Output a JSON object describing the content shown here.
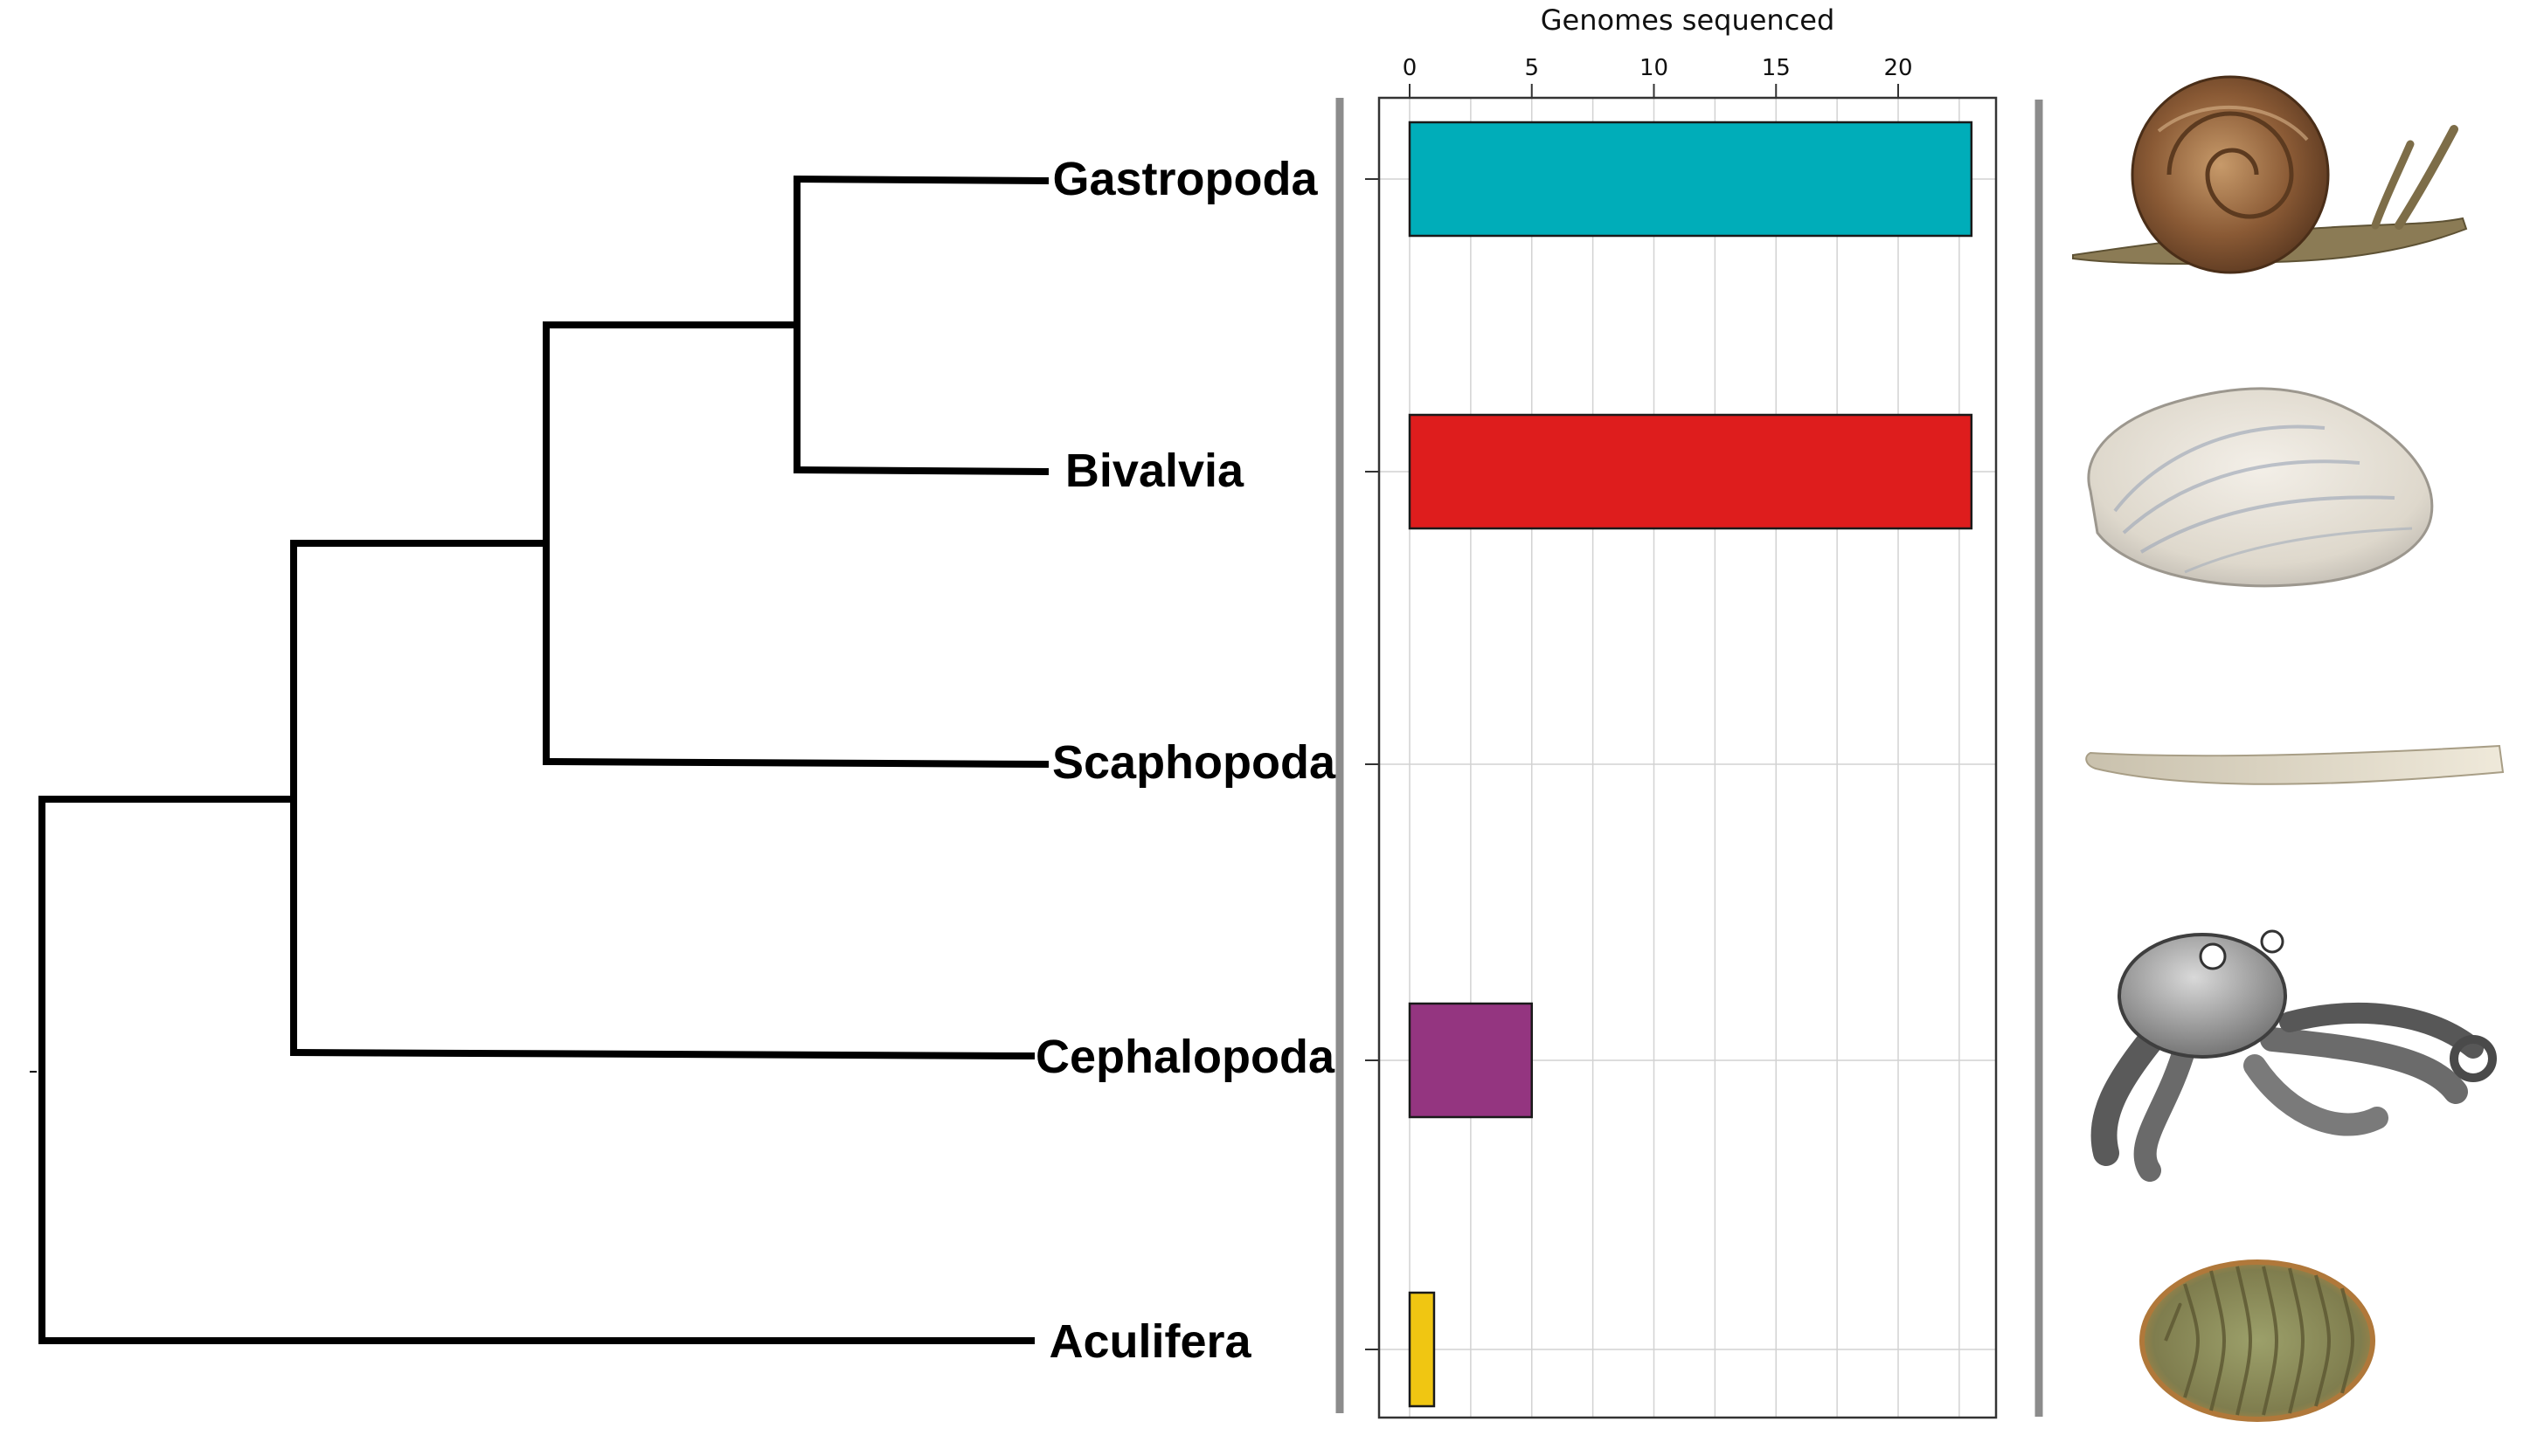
{
  "chart_data": {
    "type": "bar",
    "orientation": "horizontal",
    "xlabel": "Genomes sequenced",
    "xlim": [
      0,
      24
    ],
    "x_ticks": [
      0,
      5,
      10,
      15,
      20
    ],
    "grid": true,
    "categories": [
      "Gastropoda",
      "Bivalvia",
      "Scaphopoda",
      "Cephalopoda",
      "Aculifera"
    ],
    "values": [
      23,
      23,
      0,
      5,
      1
    ],
    "colors": [
      "#00adb9",
      "#de1d1d",
      "#ffffff",
      "#943580",
      "#f0c612"
    ]
  },
  "tree": {
    "type": "cladogram",
    "topology": "(Aculifera,(Cephalopoda,(Scaphopoda,(Bivalvia,Gastropoda))))"
  },
  "illustrations": [
    "snail",
    "clam",
    "tusk-shell",
    "octopus",
    "chiton"
  ]
}
